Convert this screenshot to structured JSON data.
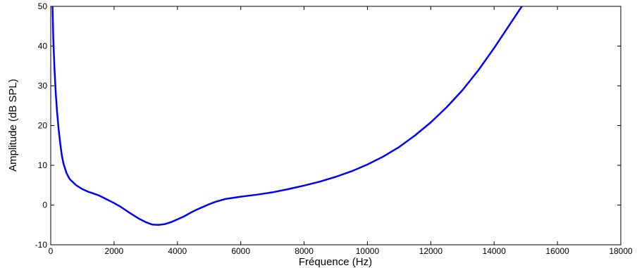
{
  "chart_data": {
    "type": "line",
    "xlabel": "Fréquence (Hz)",
    "ylabel": "Amplitude (dB SPL)",
    "xlim": [
      0,
      18000
    ],
    "ylim": [
      -10,
      50
    ],
    "xticks": [
      0,
      2000,
      4000,
      6000,
      8000,
      10000,
      12000,
      14000,
      16000,
      18000
    ],
    "yticks": [
      -10,
      0,
      10,
      20,
      30,
      40,
      50
    ],
    "grid": false,
    "legend": "none",
    "series": [
      {
        "color": "#0000ff",
        "x": [
          20,
          50,
          80,
          120,
          160,
          200,
          250,
          300,
          350,
          400,
          500,
          600,
          800,
          1000,
          1200,
          1500,
          1800,
          2000,
          2200,
          2500,
          2800,
          3000,
          3200,
          3400,
          3600,
          3800,
          4000,
          4200,
          4400,
          4600,
          4800,
          5000,
          5200,
          5500,
          6000,
          6500,
          7000,
          7500,
          8000,
          8500,
          9000,
          9500,
          10000,
          10500,
          11000,
          11500,
          12000,
          12500,
          13000,
          13500,
          14000,
          14500,
          15000
        ],
        "y": [
          75,
          52,
          42,
          34,
          28,
          23.5,
          19,
          15.5,
          12.5,
          10.5,
          8,
          6.5,
          5,
          4,
          3.3,
          2.5,
          1.3,
          0.5,
          -0.4,
          -2,
          -3.5,
          -4.3,
          -4.9,
          -5,
          -4.8,
          -4.3,
          -3.6,
          -2.9,
          -2,
          -1.2,
          -0.5,
          0.2,
          0.8,
          1.5,
          2.1,
          2.6,
          3.2,
          4,
          4.9,
          5.9,
          7.1,
          8.5,
          10.2,
          12.2,
          14.6,
          17.5,
          20.8,
          24.6,
          28.9,
          33.9,
          39.5,
          45.5,
          51.5
        ]
      }
    ]
  }
}
